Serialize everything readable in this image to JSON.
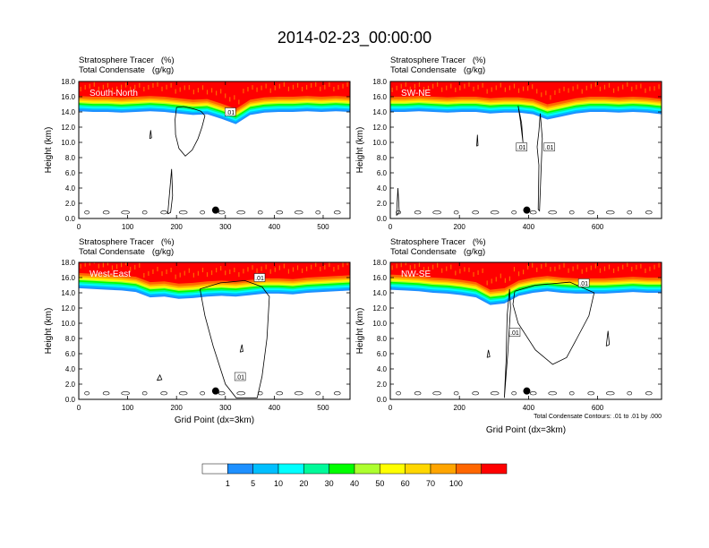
{
  "figure_title": "2014-02-23_00:00:00",
  "panels": [
    {
      "label": "South-North",
      "var1": "Stratosphere Tracer   (%)",
      "var2": "Total Condensate   (g/kg)",
      "xlabel": "",
      "ylabel": "Height (km)",
      "footnote": ""
    },
    {
      "label": "SW-NE",
      "var1": "Stratosphere Tracer   (%)",
      "var2": "Total Condensate   (g/kg)",
      "xlabel": "",
      "ylabel": "Height (km)",
      "footnote": ""
    },
    {
      "label": "West-East",
      "var1": "Stratosphere Tracer   (%)",
      "var2": "Total Condensate   (g/kg)",
      "xlabel": "Grid Point (dx=3km)",
      "ylabel": "Height (km)",
      "footnote": ""
    },
    {
      "label": "NW-SE",
      "var1": "Stratosphere Tracer   (%)",
      "var2": "Total Condensate   (g/kg)",
      "xlabel": "Grid Point (dx=3km)",
      "ylabel": "Height (km)",
      "footnote": "Total Condensate Contours: .01 to .01 by .000"
    }
  ],
  "colorbar": {
    "labels": [
      "1",
      "5",
      "10",
      "20",
      "30",
      "40",
      "50",
      "60",
      "70",
      "100"
    ],
    "colors": [
      "#ffffff",
      "#1e90ff",
      "#00bfff",
      "#00ffff",
      "#00fa9a",
      "#00ff00",
      "#adff2f",
      "#ffff00",
      "#ffd700",
      "#ffa500",
      "#ff6600",
      "#ff0000"
    ]
  },
  "chart_data": [
    {
      "type": "heatmap",
      "title": "South-North",
      "xlabel": "",
      "ylabel": "Height (km)",
      "xlim": [
        0,
        555
      ],
      "ylim": [
        0,
        18
      ],
      "xticks": [
        0,
        100,
        200,
        300,
        400,
        500
      ],
      "yticks": [
        0.0,
        2.0,
        4.0,
        6.0,
        8.0,
        10.0,
        12.0,
        14.0,
        16.0,
        18.0
      ],
      "tracer_base_km": [
        14.1,
        14.0,
        14.0,
        13.9,
        14.0,
        14.1,
        14.0,
        13.8,
        13.6,
        13.7,
        13.1,
        12.4,
        13.6,
        13.9,
        14.0,
        14.0,
        14.1,
        14.0,
        14.1,
        14.0
      ],
      "condensate_contour_label": ".01",
      "markers": [
        {
          "x": 280,
          "y": 1.1
        }
      ]
    },
    {
      "type": "heatmap",
      "title": "SW-NE",
      "xlabel": "",
      "ylabel": "Height (km)",
      "xlim": [
        0,
        785
      ],
      "ylim": [
        0,
        18
      ],
      "xticks": [
        0,
        200,
        400,
        600
      ],
      "yticks": [
        0.0,
        2.0,
        4.0,
        6.0,
        8.0,
        10.0,
        12.0,
        14.0,
        16.0,
        18.0
      ],
      "tracer_base_km": [
        14.0,
        14.0,
        14.1,
        14.0,
        13.9,
        14.0,
        14.0,
        13.8,
        13.9,
        13.9,
        13.7,
        13.0,
        13.4,
        13.8,
        14.0,
        14.0,
        13.9,
        14.0,
        13.9,
        13.7
      ],
      "condensate_contour_label": ".01",
      "markers": [
        {
          "x": 395,
          "y": 1.1
        }
      ]
    },
    {
      "type": "heatmap",
      "title": "West-East",
      "xlabel": "Grid Point (dx=3km)",
      "ylabel": "Height (km)",
      "xlim": [
        0,
        555
      ],
      "ylim": [
        0,
        18
      ],
      "xticks": [
        0,
        100,
        200,
        300,
        400,
        500
      ],
      "yticks": [
        0.0,
        2.0,
        4.0,
        6.0,
        8.0,
        10.0,
        12.0,
        14.0,
        16.0,
        18.0
      ],
      "tracer_base_km": [
        14.6,
        14.5,
        14.4,
        14.3,
        14.1,
        13.4,
        13.5,
        13.2,
        13.3,
        13.5,
        13.6,
        13.5,
        13.7,
        13.9,
        13.9,
        13.8,
        14.0,
        14.1,
        14.2,
        14.3
      ],
      "condensate_contour_label": ".01",
      "markers": [
        {
          "x": 280,
          "y": 1.1
        }
      ]
    },
    {
      "type": "heatmap",
      "title": "NW-SE",
      "xlabel": "Grid Point (dx=3km)",
      "ylabel": "Height (km)",
      "xlim": [
        0,
        785
      ],
      "ylim": [
        0,
        18
      ],
      "xticks": [
        0,
        200,
        400,
        600
      ],
      "yticks": [
        0.0,
        2.0,
        4.0,
        6.0,
        8.0,
        10.0,
        12.0,
        14.0,
        16.0,
        18.0
      ],
      "tracer_base_km": [
        14.4,
        14.3,
        14.2,
        14.0,
        13.9,
        13.7,
        13.4,
        12.4,
        12.6,
        13.6,
        14.0,
        14.2,
        14.0,
        13.9,
        13.9,
        13.9,
        14.0,
        14.1,
        14.0,
        14.0
      ],
      "condensate_contour_label": ".01",
      "markers": [
        {
          "x": 395,
          "y": 1.1
        }
      ]
    }
  ]
}
